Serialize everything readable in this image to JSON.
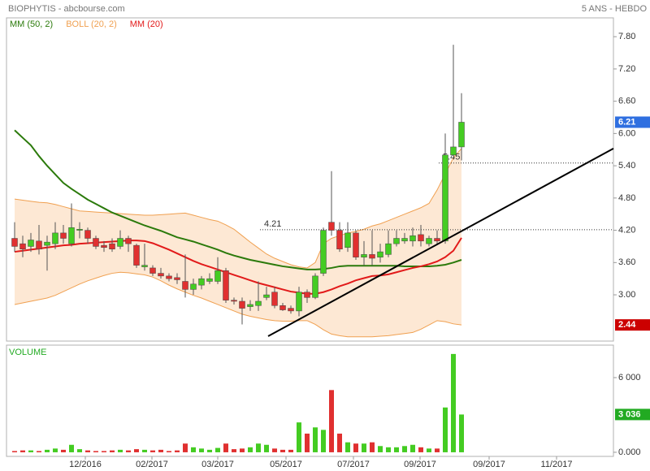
{
  "chart_data": [
    {
      "type": "candlestick",
      "title": "BIOPHYTIS - abcbourse.com",
      "subtitle": "5 ANS - HEBDO",
      "open": [
        4.05,
        3.95,
        3.9,
        4.0,
        3.92,
        3.95,
        4.15,
        3.95,
        4.2,
        4.2,
        4.05,
        3.92,
        3.95,
        3.9,
        4.05,
        3.92,
        3.52,
        3.5,
        3.4,
        3.35,
        3.32,
        3.25,
        3.1,
        3.18,
        3.25,
        3.25,
        3.45,
        2.9,
        2.88,
        2.78,
        2.8,
        2.95,
        3.05,
        2.8,
        2.75,
        2.7,
        3.05,
        2.95,
        3.4,
        4.35,
        4.2,
        3.88,
        4.15,
        3.7,
        3.75,
        3.7,
        3.75,
        3.95,
        4.0,
        4.0,
        4.12,
        3.95,
        4.05,
        4.0,
        5.6,
        5.75
      ],
      "high": [
        4.35,
        4.1,
        4.15,
        4.3,
        4.1,
        4.35,
        4.3,
        4.7,
        4.35,
        4.25,
        4.1,
        4.0,
        4.05,
        4.2,
        4.1,
        3.95,
        3.95,
        3.55,
        3.5,
        3.4,
        3.4,
        3.75,
        3.3,
        3.35,
        3.4,
        3.7,
        3.5,
        2.95,
        2.95,
        2.9,
        3.25,
        3.15,
        3.15,
        2.85,
        2.8,
        3.15,
        3.1,
        3.4,
        4.25,
        5.3,
        4.35,
        4.35,
        4.2,
        4.0,
        4.2,
        3.95,
        4.2,
        4.2,
        4.15,
        4.25,
        4.3,
        4.1,
        4.2,
        6.0,
        7.65,
        6.75
      ],
      "low": [
        3.8,
        3.7,
        3.8,
        3.75,
        3.45,
        3.85,
        3.95,
        3.9,
        4.05,
        3.95,
        3.85,
        3.8,
        3.8,
        3.85,
        3.8,
        3.5,
        3.45,
        3.35,
        3.3,
        3.25,
        3.2,
        2.95,
        3.0,
        3.1,
        3.2,
        3.2,
        2.85,
        2.82,
        2.45,
        2.7,
        2.7,
        2.9,
        2.75,
        2.7,
        2.65,
        2.6,
        2.85,
        2.92,
        3.35,
        4.1,
        3.8,
        3.8,
        3.65,
        3.55,
        3.55,
        3.6,
        3.7,
        3.9,
        3.95,
        3.9,
        3.9,
        3.9,
        3.95,
        3.95,
        5.6,
        5.5
      ],
      "close": [
        3.9,
        3.85,
        4.02,
        3.85,
        3.98,
        4.15,
        4.05,
        4.25,
        4.22,
        4.05,
        3.9,
        3.88,
        3.85,
        4.05,
        3.95,
        3.55,
        3.55,
        3.4,
        3.35,
        3.3,
        3.28,
        3.1,
        3.2,
        3.3,
        3.3,
        3.45,
        2.9,
        2.88,
        2.75,
        2.82,
        2.88,
        3.0,
        2.8,
        2.72,
        2.7,
        3.05,
        2.95,
        3.35,
        4.2,
        4.2,
        3.85,
        4.15,
        3.7,
        3.75,
        3.68,
        3.8,
        3.95,
        4.05,
        4.05,
        4.1,
        4.0,
        4.05,
        4.0,
        5.6,
        5.75,
        6.21
      ],
      "up_color": "#44cc22",
      "down_color": "#e03030",
      "series": [
        {
          "name": "MM (50, 2)",
          "color": "#2b7a0b",
          "values": [
            6.06,
            5.92,
            5.78,
            5.58,
            5.4,
            5.24,
            5.08,
            4.97,
            4.87,
            4.77,
            4.69,
            4.61,
            4.53,
            4.47,
            4.41,
            4.35,
            4.29,
            4.24,
            4.19,
            4.13,
            4.07,
            4.03,
            3.99,
            3.94,
            3.89,
            3.84,
            3.78,
            3.73,
            3.69,
            3.65,
            3.62,
            3.59,
            3.56,
            3.53,
            3.51,
            3.49,
            3.47,
            3.47,
            3.48,
            3.5,
            3.53,
            3.54,
            3.54,
            3.54,
            3.54,
            3.54,
            3.54,
            3.54,
            3.53,
            3.53,
            3.53,
            3.53,
            3.54,
            3.56,
            3.6,
            3.65
          ]
        },
        {
          "name": "BOLL (20, 2)",
          "color": "#f0a050",
          "fill": "#fde8d4",
          "upper": [
            4.78,
            4.76,
            4.74,
            4.72,
            4.71,
            4.68,
            4.64,
            4.6,
            4.56,
            4.55,
            4.54,
            4.53,
            4.52,
            4.51,
            4.5,
            4.49,
            4.48,
            4.48,
            4.49,
            4.5,
            4.51,
            4.52,
            4.48,
            4.44,
            4.4,
            4.37,
            4.3,
            4.22,
            4.1,
            3.98,
            3.87,
            3.76,
            3.68,
            3.62,
            3.56,
            3.52,
            3.5,
            3.6,
            3.95,
            4.05,
            4.1,
            4.15,
            4.18,
            4.22,
            4.28,
            4.32,
            4.38,
            4.44,
            4.5,
            4.56,
            4.62,
            4.7,
            4.95,
            5.25,
            5.55,
            5.72
          ],
          "lower": [
            2.82,
            2.85,
            2.88,
            2.91,
            2.94,
            2.99,
            3.06,
            3.13,
            3.2,
            3.26,
            3.31,
            3.36,
            3.4,
            3.42,
            3.41,
            3.39,
            3.37,
            3.33,
            3.26,
            3.18,
            3.11,
            3.05,
            2.99,
            2.94,
            2.88,
            2.82,
            2.76,
            2.7,
            2.64,
            2.6,
            2.57,
            2.54,
            2.52,
            2.51,
            2.51,
            2.52,
            2.52,
            2.45,
            2.35,
            2.27,
            2.24,
            2.22,
            2.22,
            2.22,
            2.22,
            2.23,
            2.24,
            2.26,
            2.28,
            2.3,
            2.36,
            2.44,
            2.52,
            2.5,
            2.46,
            2.44
          ]
        },
        {
          "name": "MM (20)",
          "color": "#e21a1a",
          "values": [
            3.8,
            3.82,
            3.84,
            3.86,
            3.88,
            3.9,
            3.92,
            3.93,
            3.95,
            3.96,
            3.97,
            3.98,
            3.99,
            4.0,
            4.01,
            4.01,
            4.0,
            3.96,
            3.9,
            3.84,
            3.77,
            3.7,
            3.63,
            3.57,
            3.52,
            3.47,
            3.42,
            3.37,
            3.32,
            3.27,
            3.22,
            3.18,
            3.14,
            3.1,
            3.06,
            3.04,
            3.02,
            3.02,
            3.05,
            3.1,
            3.16,
            3.21,
            3.27,
            3.31,
            3.35,
            3.36,
            3.38,
            3.42,
            3.46,
            3.5,
            3.53,
            3.57,
            3.62,
            3.7,
            3.82,
            4.06
          ]
        }
      ],
      "levels": [
        {
          "value": 4.21,
          "start": 30.2
        },
        {
          "value": 5.45,
          "start": 52.2
        }
      ],
      "trendline": {
        "x": [
          31.2,
          73.7
        ],
        "y": [
          2.23,
          5.72
        ],
        "color": "#000000"
      },
      "badges": [
        {
          "value": 6.21,
          "color": "#2f6fe0"
        },
        {
          "value": 2.44,
          "color": "#cc0000"
        }
      ],
      "xlim": [
        -1,
        73.7
      ],
      "ylim": [
        2.14,
        8.15
      ],
      "yticks": [
        {
          "value": 7.8,
          "label": "7.80"
        },
        {
          "value": 7.2,
          "label": "7.20"
        },
        {
          "value": 6.6,
          "label": "6.60"
        },
        {
          "value": 6,
          "label": "6.00"
        },
        {
          "value": 5.4,
          "label": "5.40"
        },
        {
          "value": 4.8,
          "label": "4.80"
        },
        {
          "value": 4.2,
          "label": "4.20"
        },
        {
          "value": 3.6,
          "label": "3.60"
        },
        {
          "value": 3,
          "label": "3.00"
        }
      ]
    },
    {
      "type": "bar",
      "title": "VOLUME",
      "values": [
        100,
        150,
        150,
        100,
        200,
        300,
        200,
        600,
        250,
        150,
        100,
        100,
        150,
        200,
        150,
        250,
        200,
        150,
        200,
        100,
        150,
        700,
        400,
        300,
        200,
        350,
        700,
        250,
        300,
        400,
        700,
        600,
        300,
        200,
        200,
        2400,
        1500,
        2000,
        1800,
        5000,
        1500,
        800,
        700,
        700,
        800,
        500,
        400,
        400,
        500,
        600,
        400,
        300,
        300,
        3600,
        7900,
        3036
      ],
      "badges": [
        {
          "value": 3036,
          "label": "3 036",
          "color": "#22aa22"
        }
      ],
      "xlim": [
        -1,
        73.7
      ],
      "ylim": [
        -330,
        8610
      ],
      "yticks": [
        {
          "value": 6000,
          "label": "6 000"
        },
        {
          "value": 0,
          "label": "0.000"
        }
      ],
      "xticks": [
        {
          "value": 8.7,
          "label": "12/2016"
        },
        {
          "value": 16.9,
          "label": "02/2017"
        },
        {
          "value": 25,
          "label": "03/2017"
        },
        {
          "value": 33.4,
          "label": "05/2017"
        },
        {
          "value": 41.7,
          "label": "07/2017"
        },
        {
          "value": 49.9,
          "label": "09/2017"
        },
        {
          "value": 58.4,
          "label": "09/2017"
        },
        {
          "value": 66.7,
          "label": "11/2017"
        }
      ]
    }
  ]
}
